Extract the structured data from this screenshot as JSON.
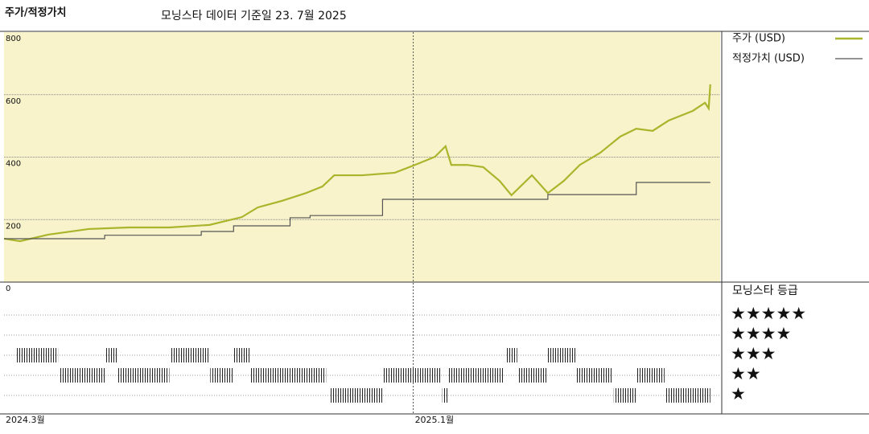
{
  "chart_data": {
    "type": "line",
    "title": "주가/적정가치",
    "subtitle": "모닝스타 데이터 기준일 23. 7월 2025",
    "xlim": [
      0,
      17.5
    ],
    "xticks": [
      {
        "value": 0,
        "label": "2024.3월"
      },
      {
        "value": 10,
        "label": "2025.1월"
      }
    ],
    "ylim": [
      0,
      800
    ],
    "yticks": [
      0,
      200,
      400,
      600,
      800
    ],
    "grid": true,
    "series": [
      {
        "name": "주가 (USD)",
        "color": "#aab52c",
        "step": false,
        "x": [
          0,
          0.39,
          1.08,
          2.07,
          3.05,
          4.04,
          5.02,
          5.81,
          6.2,
          6.79,
          7.38,
          7.78,
          8.07,
          8.76,
          9.55,
          10.04,
          10.53,
          10.79,
          10.93,
          11.32,
          11.71,
          12.11,
          12.4,
          12.9,
          13.29,
          13.68,
          14.07,
          14.57,
          15.06,
          15.45,
          15.85,
          16.24,
          16.83,
          17.13,
          17.22,
          17.26
        ],
        "values": [
          139,
          131,
          152,
          170,
          175,
          175,
          183,
          208,
          239,
          260,
          285,
          306,
          342,
          342,
          350,
          375,
          401,
          435,
          375,
          375,
          368,
          324,
          278,
          342,
          285,
          324,
          375,
          414,
          466,
          491,
          484,
          517,
          548,
          574,
          556,
          633
        ]
      },
      {
        "name": "적정가치 (USD)",
        "color": "#555555",
        "step": true,
        "x": [
          0,
          2.46,
          4.82,
          5.61,
          6.99,
          7.48,
          9.25,
          13.29,
          15.45,
          17.26
        ],
        "values": [
          139,
          150,
          162,
          180,
          206,
          213,
          265,
          280,
          319,
          319
        ]
      }
    ],
    "rating_title": "모닝스타 등급",
    "rating_levels": [
      {
        "stars": 5,
        "label": "★★★★★"
      },
      {
        "stars": 4,
        "label": "★★★★"
      },
      {
        "stars": 3,
        "label": "★★★"
      },
      {
        "stars": 2,
        "label": "★★"
      },
      {
        "stars": 1,
        "label": "★"
      }
    ],
    "rating_history": [
      {
        "start": 0.3,
        "end": 1.32,
        "stars": 3
      },
      {
        "start": 1.34,
        "end": 2.46,
        "stars": 2
      },
      {
        "start": 2.46,
        "end": 2.76,
        "stars": 3
      },
      {
        "start": 2.78,
        "end": 4.04,
        "stars": 2
      },
      {
        "start": 4.08,
        "end": 5.02,
        "stars": 3
      },
      {
        "start": 5.04,
        "end": 5.61,
        "stars": 2
      },
      {
        "start": 5.61,
        "end": 6.0,
        "stars": 3
      },
      {
        "start": 6.02,
        "end": 7.87,
        "stars": 2
      },
      {
        "start": 7.97,
        "end": 9.25,
        "stars": 1
      },
      {
        "start": 9.27,
        "end": 10.69,
        "stars": 2
      },
      {
        "start": 10.71,
        "end": 10.85,
        "stars": 1
      },
      {
        "start": 10.87,
        "end": 12.2,
        "stars": 2
      },
      {
        "start": 12.26,
        "end": 12.54,
        "stars": 3
      },
      {
        "start": 12.56,
        "end": 13.29,
        "stars": 2
      },
      {
        "start": 13.29,
        "end": 13.98,
        "stars": 3
      },
      {
        "start": 14.0,
        "end": 14.88,
        "stars": 2
      },
      {
        "start": 14.9,
        "end": 15.45,
        "stars": 1
      },
      {
        "start": 15.45,
        "end": 16.14,
        "stars": 2
      },
      {
        "start": 16.16,
        "end": 17.26,
        "stars": 1
      }
    ]
  }
}
